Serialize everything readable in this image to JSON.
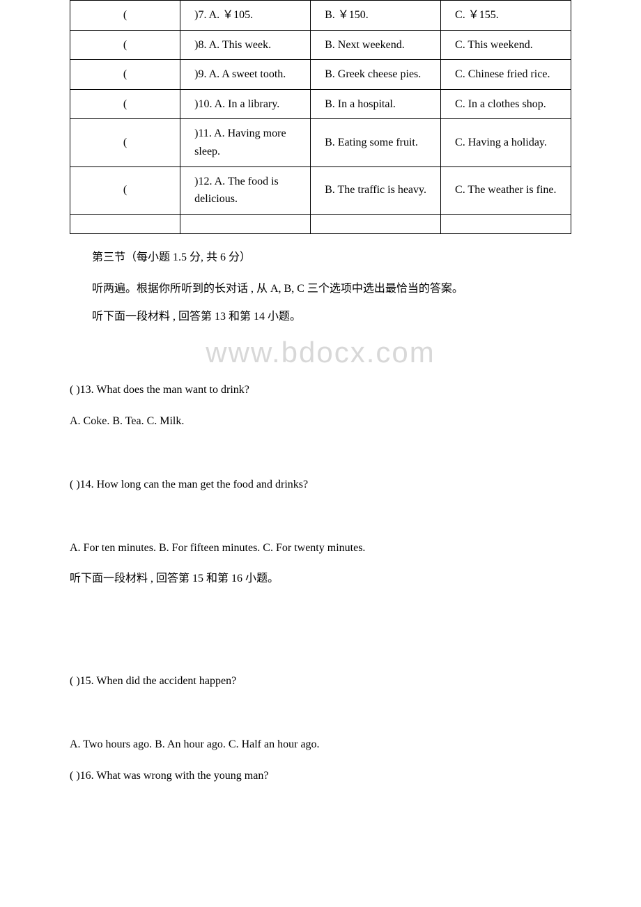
{
  "table": {
    "rows": [
      {
        "c1": "(",
        "c2": ")7. A. ￥105.",
        "c3": "B. ￥150.",
        "c4": "C. ￥155."
      },
      {
        "c1": "(",
        "c2": ")8. A. This week.",
        "c3": "B. Next weekend.",
        "c4": "C. This weekend."
      },
      {
        "c1": "(",
        "c2": ")9. A. A sweet tooth.",
        "c3": "B. Greek cheese pies.",
        "c4": "C. Chinese fried rice."
      },
      {
        "c1": "(",
        "c2": ")10. A. In a library.",
        "c3": "B. In a hospital.",
        "c4": "C. In a clothes shop."
      },
      {
        "c1": "(",
        "c2": ")11. A. Having more sleep.",
        "c3": "B. Eating some fruit.",
        "c4": "C. Having a holiday."
      },
      {
        "c1": "(",
        "c2": ")12. A. The food is delicious.",
        "c3": "B. The traffic is heavy.",
        "c4": "C. The weather is fine."
      }
    ]
  },
  "section3_heading": "第三节（每小题 1.5 分, 共 6 分）",
  "section3_instr1": "听两遍。根据你所听到的长对话 , 从 A, B, C 三个选项中选出最恰当的答案。",
  "section3_instr2": "听下面一段材料 , 回答第 13 和第 14 小题。",
  "watermark": "www.bdocx.com",
  "q13": {
    "stem": "( )13. What does the man want to drink?",
    "opts": "A. Coke. B. Tea. C. Milk."
  },
  "q14": {
    "stem": "( )14. How long can the man get the food and drinks?",
    "opts": "A. For ten minutes. B. For fifteen minutes. C. For twenty minutes."
  },
  "section3_instr3": "听下面一段材料 , 回答第 15 和第 16 小题。",
  "q15": {
    "stem": "( )15. When did the accident happen?",
    "opts": "A. Two hours ago. B. An hour ago. C. Half an hour ago."
  },
  "q16": {
    "stem": "( )16. What was wrong with the young man?"
  }
}
